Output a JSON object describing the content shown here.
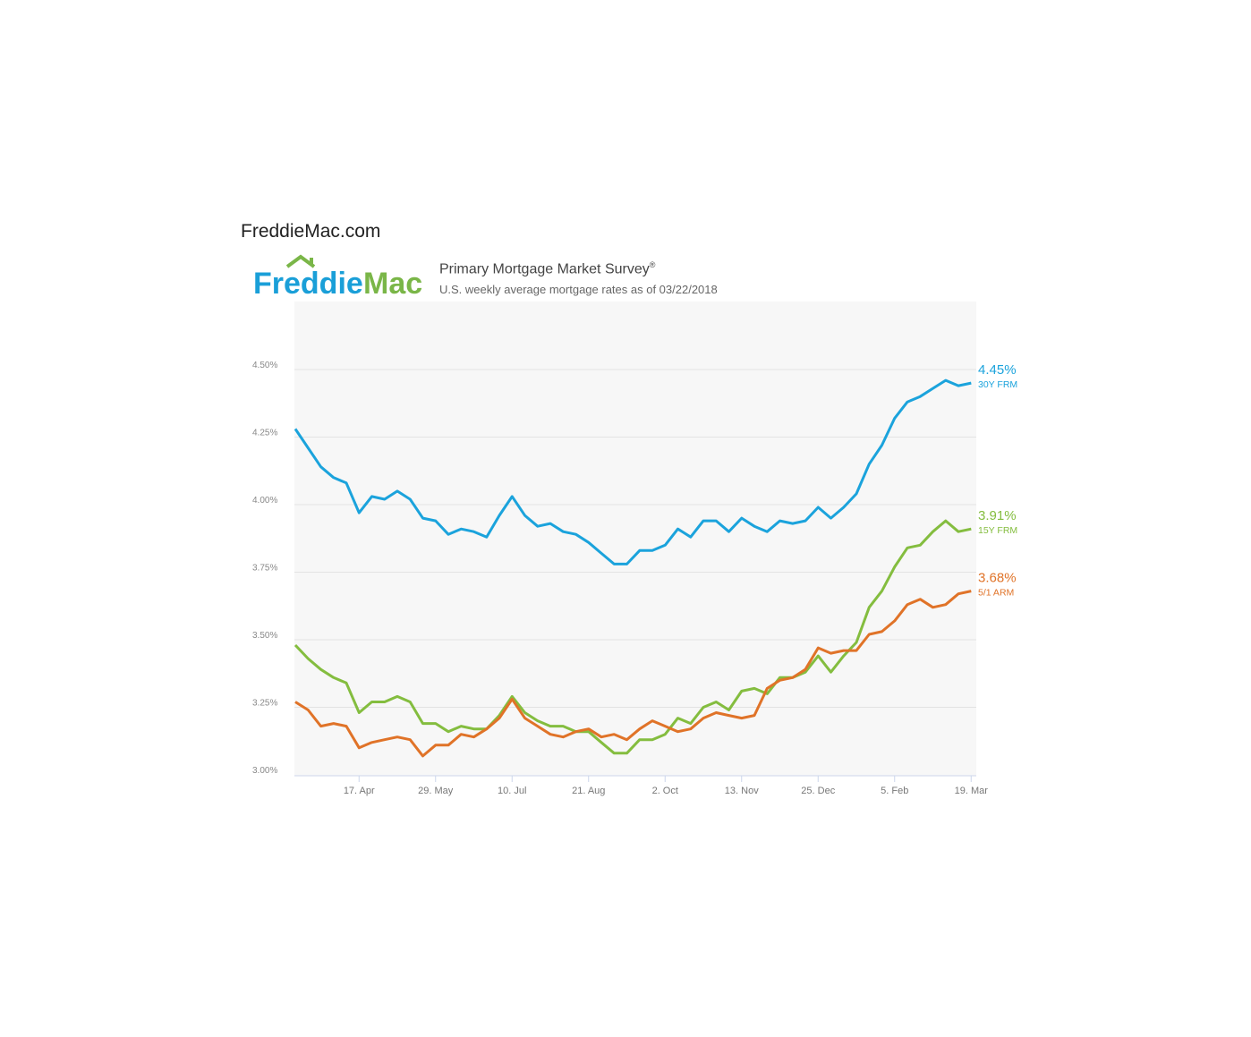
{
  "site": "FreddieMac.com",
  "logo": {
    "text_left": "Freddie",
    "text_right": "Mac",
    "color_left": "#1a9fd8",
    "color_right": "#7ab648"
  },
  "header": {
    "title": "Primary Mortgage Market Survey",
    "title_mark": "®",
    "subtitle": "U.S. weekly average mortgage rates as of 03/22/2018"
  },
  "chart_data": {
    "type": "line",
    "ylim": [
      3.0,
      4.7
    ],
    "yticks": [
      "4.50%",
      "4.25%",
      "4.00%",
      "3.75%",
      "3.50%",
      "3.25%",
      "3.00%"
    ],
    "ytick_values": [
      4.5,
      4.25,
      4.0,
      3.75,
      3.5,
      3.25,
      3.0
    ],
    "xticks": [
      "17. Apr",
      "29. May",
      "10. Jul",
      "21. Aug",
      "2. Oct",
      "13. Nov",
      "25. Dec",
      "5. Feb",
      "19. Mar"
    ],
    "xtick_weeks": [
      5,
      11,
      17,
      23,
      29,
      35,
      41,
      47,
      53
    ],
    "grid": true,
    "legend": "right-end labels",
    "series": [
      {
        "name": "30Y FRM",
        "end_label": "4.45%",
        "color": "#1ba3dc",
        "values": [
          4.28,
          4.21,
          4.14,
          4.1,
          4.08,
          3.97,
          4.03,
          4.02,
          4.05,
          4.02,
          3.95,
          3.94,
          3.89,
          3.91,
          3.9,
          3.88,
          3.96,
          4.03,
          3.96,
          3.92,
          3.93,
          3.9,
          3.89,
          3.86,
          3.82,
          3.78,
          3.78,
          3.83,
          3.83,
          3.85,
          3.91,
          3.88,
          3.94,
          3.94,
          3.9,
          3.95,
          3.92,
          3.9,
          3.94,
          3.93,
          3.94,
          3.99,
          3.95,
          3.99,
          4.04,
          4.15,
          4.22,
          4.32,
          4.38,
          4.4,
          4.43,
          4.46,
          4.44,
          4.45
        ]
      },
      {
        "name": "15Y FRM",
        "end_label": "3.91%",
        "color": "#84bd3f",
        "values": [
          3.48,
          3.43,
          3.39,
          3.36,
          3.34,
          3.23,
          3.27,
          3.27,
          3.29,
          3.27,
          3.19,
          3.19,
          3.16,
          3.18,
          3.17,
          3.17,
          3.22,
          3.29,
          3.23,
          3.2,
          3.18,
          3.18,
          3.16,
          3.16,
          3.12,
          3.08,
          3.08,
          3.13,
          3.13,
          3.15,
          3.21,
          3.19,
          3.25,
          3.27,
          3.24,
          3.31,
          3.32,
          3.3,
          3.36,
          3.36,
          3.38,
          3.44,
          3.38,
          3.44,
          3.49,
          3.62,
          3.68,
          3.77,
          3.84,
          3.85,
          3.9,
          3.94,
          3.9,
          3.91
        ]
      },
      {
        "name": "5/1 ARM",
        "end_label": "3.68%",
        "color": "#e07328",
        "values": [
          3.27,
          3.24,
          3.18,
          3.19,
          3.18,
          3.1,
          3.12,
          3.13,
          3.14,
          3.13,
          3.07,
          3.11,
          3.11,
          3.15,
          3.14,
          3.17,
          3.21,
          3.28,
          3.21,
          3.18,
          3.15,
          3.14,
          3.16,
          3.17,
          3.14,
          3.15,
          3.13,
          3.17,
          3.2,
          3.18,
          3.16,
          3.17,
          3.21,
          3.23,
          3.22,
          3.21,
          3.22,
          3.32,
          3.35,
          3.36,
          3.39,
          3.47,
          3.45,
          3.46,
          3.46,
          3.52,
          3.53,
          3.57,
          3.63,
          3.65,
          3.62,
          3.63,
          3.67,
          3.68
        ]
      }
    ]
  }
}
